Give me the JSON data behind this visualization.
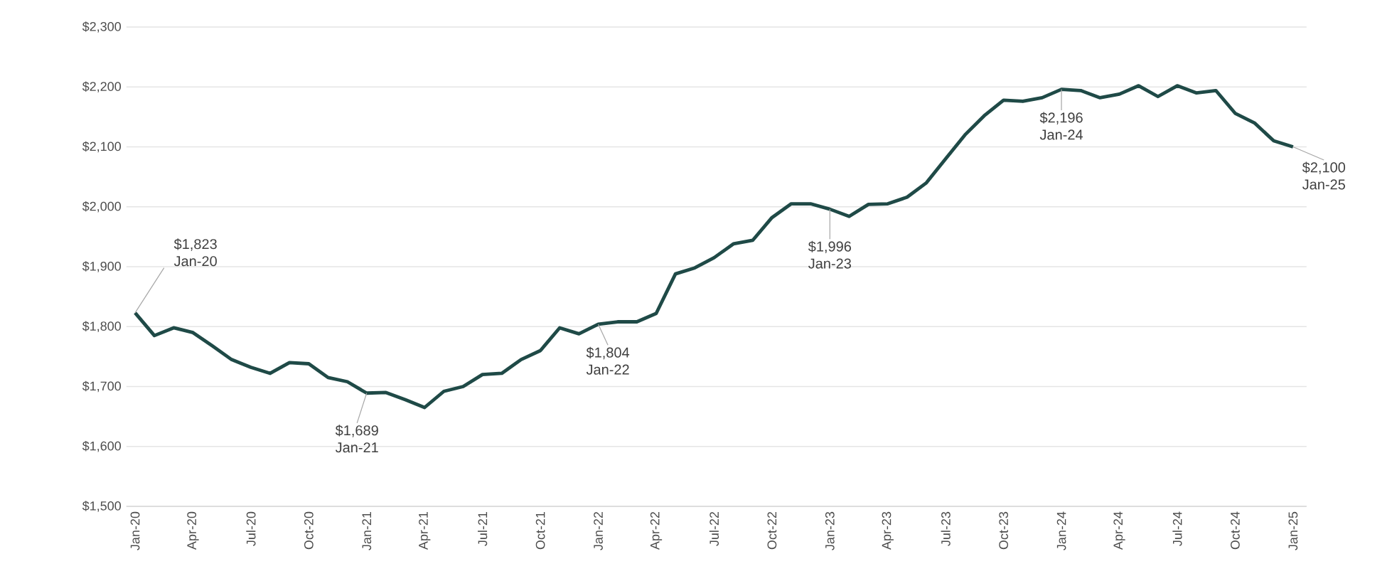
{
  "chart_data": {
    "type": "line",
    "categories": [
      "Jan-20",
      null,
      null,
      "Apr-20",
      null,
      null,
      "Jul-20",
      null,
      null,
      "Oct-20",
      null,
      null,
      "Jan-21",
      null,
      null,
      "Apr-21",
      null,
      null,
      "Jul-21",
      null,
      null,
      "Oct-21",
      null,
      null,
      "Jan-22",
      null,
      null,
      "Apr-22",
      null,
      null,
      "Jul-22",
      null,
      null,
      "Oct-22",
      null,
      null,
      "Jan-23",
      null,
      null,
      "Apr-23",
      null,
      null,
      "Jul-23",
      null,
      null,
      "Oct-23",
      null,
      null,
      "Jan-24",
      null,
      null,
      "Apr-24",
      null,
      null,
      "Jul-24",
      null,
      null,
      "Oct-24",
      null,
      null,
      "Jan-25"
    ],
    "series": [
      {
        "color": "#1f4a47",
        "values": [
          1823,
          1785,
          1798,
          1790,
          1768,
          1745,
          1732,
          1722,
          1740,
          1738,
          1715,
          1708,
          1689,
          1690,
          1678,
          1665,
          1692,
          1700,
          1720,
          1722,
          1745,
          1760,
          1798,
          1788,
          1804,
          1808,
          1808,
          1822,
          1888,
          1898,
          1915,
          1938,
          1944,
          1982,
          2005,
          2005,
          1996,
          1984,
          2004,
          2005,
          2016,
          2040,
          2080,
          2120,
          2152,
          2178,
          2176,
          2182,
          2196,
          2194,
          2182,
          2188,
          2202,
          2184,
          2202,
          2190,
          2194,
          2156,
          2140,
          2110,
          2100
        ]
      }
    ],
    "ylim": [
      1500,
      2300
    ],
    "yticks": [
      {
        "value": 1500,
        "label": "$1,500"
      },
      {
        "value": 1600,
        "label": "$1,600"
      },
      {
        "value": 1700,
        "label": "$1,700"
      },
      {
        "value": 1800,
        "label": "$1,800"
      },
      {
        "value": 1900,
        "label": "$1,900"
      },
      {
        "value": 2000,
        "label": "$2,000"
      },
      {
        "value": 2100,
        "label": "$2,100"
      },
      {
        "value": 2200,
        "label": "$2,200"
      },
      {
        "value": 2300,
        "label": "$2,300"
      }
    ],
    "grid": "y",
    "marker": "none",
    "line_style": "solid",
    "annotations": [
      {
        "text": "$1,823 Jan-20",
        "x": "Jan-20",
        "y": 1823
      },
      {
        "text": "$1,689 Jan-21",
        "x": "Jan-21",
        "y": 1689
      },
      {
        "text": "$1,804 Jan-22",
        "x": "Jan-22",
        "y": 1804
      },
      {
        "text": "$1,996 Jan-23",
        "x": "Jan-23",
        "y": 1996
      },
      {
        "text": "$2,196 Jan-24",
        "x": "Jan-24",
        "y": 2196
      },
      {
        "text": "$2,100 Jan-25",
        "x": "Jan-25",
        "y": 2100
      }
    ]
  }
}
